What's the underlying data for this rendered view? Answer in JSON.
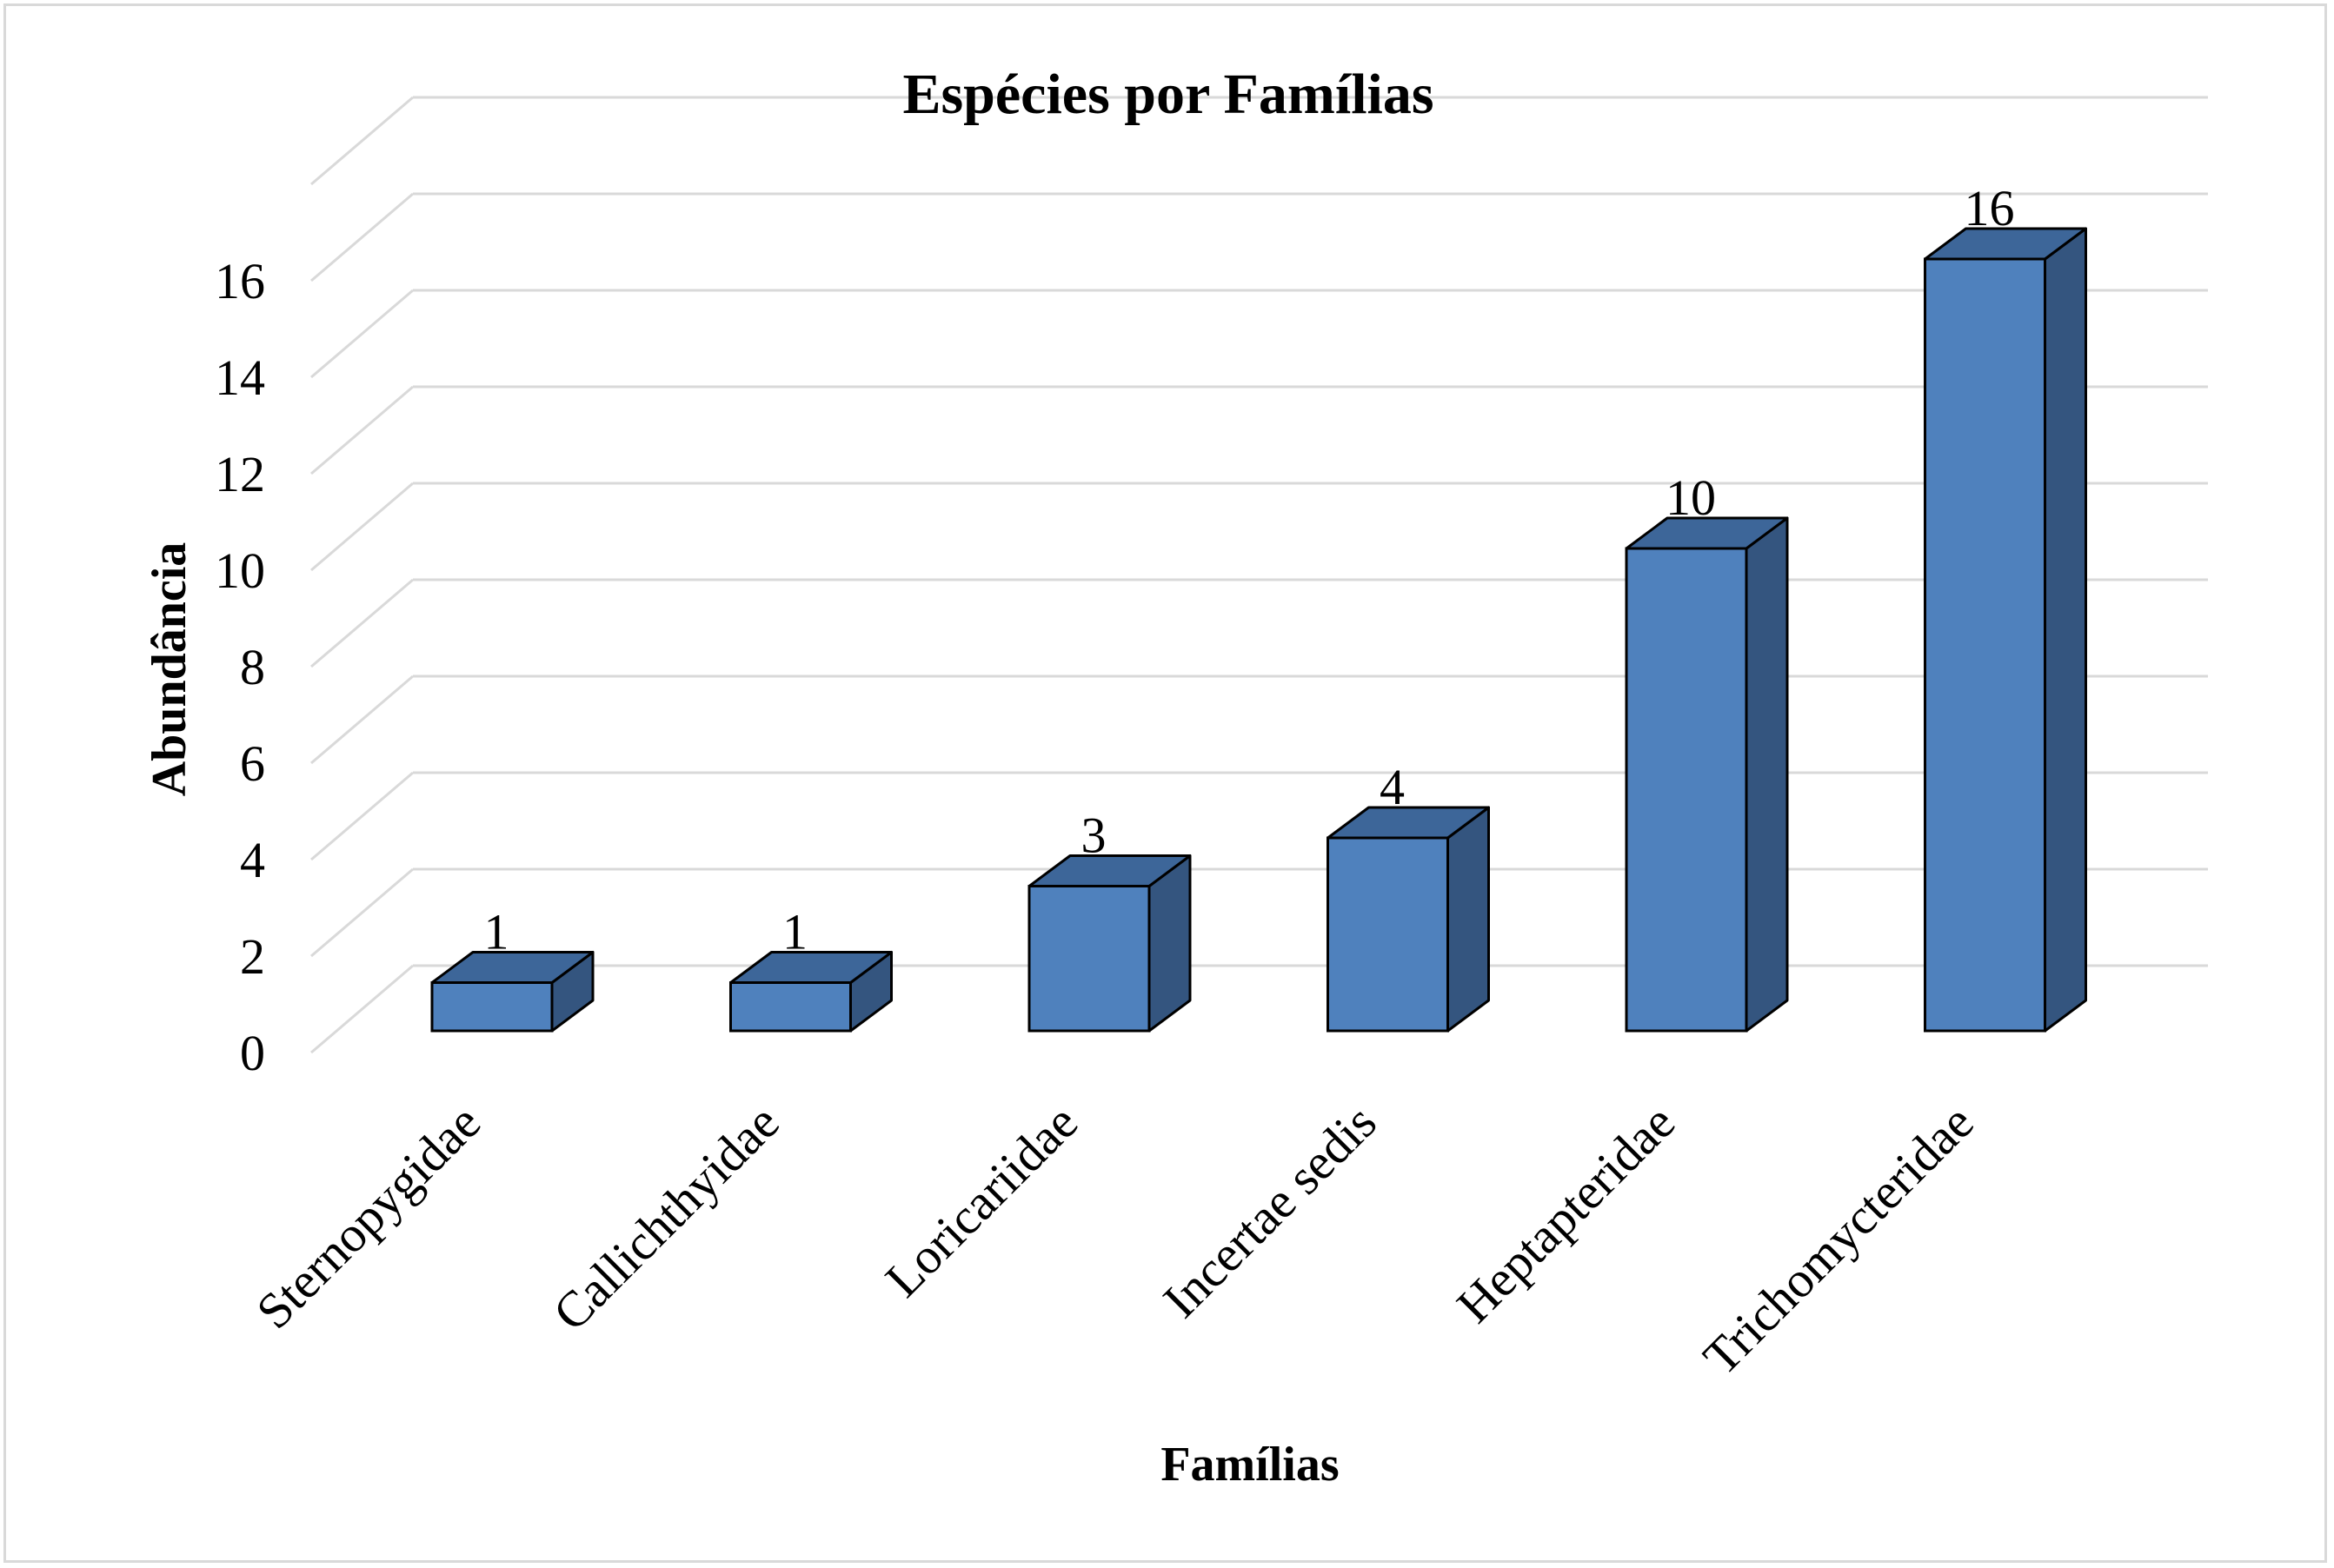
{
  "chart_data": {
    "type": "bar",
    "style": "3d-column",
    "title": "Espécies por Famílias",
    "xlabel": "Famílias",
    "ylabel": "Abundância",
    "categories": [
      "Sternopygidae",
      "Callichthyidae",
      "Loricariidae",
      "Incertae sedis",
      "Heptapteridae",
      "Trichomycteridae"
    ],
    "values": [
      1,
      1,
      3,
      4,
      10,
      16
    ],
    "data_labels": [
      "1",
      "1",
      "3",
      "4",
      "10",
      "16"
    ],
    "ylim": [
      0,
      18
    ],
    "yticks": [
      0,
      2,
      4,
      6,
      8,
      10,
      12,
      14,
      16
    ],
    "grid": true,
    "legend": "none",
    "colors": {
      "front": "#4f81bd",
      "side": "#34557f",
      "top": "#3d6699",
      "outline": "#000000",
      "grid": "#d9d9d9"
    }
  }
}
